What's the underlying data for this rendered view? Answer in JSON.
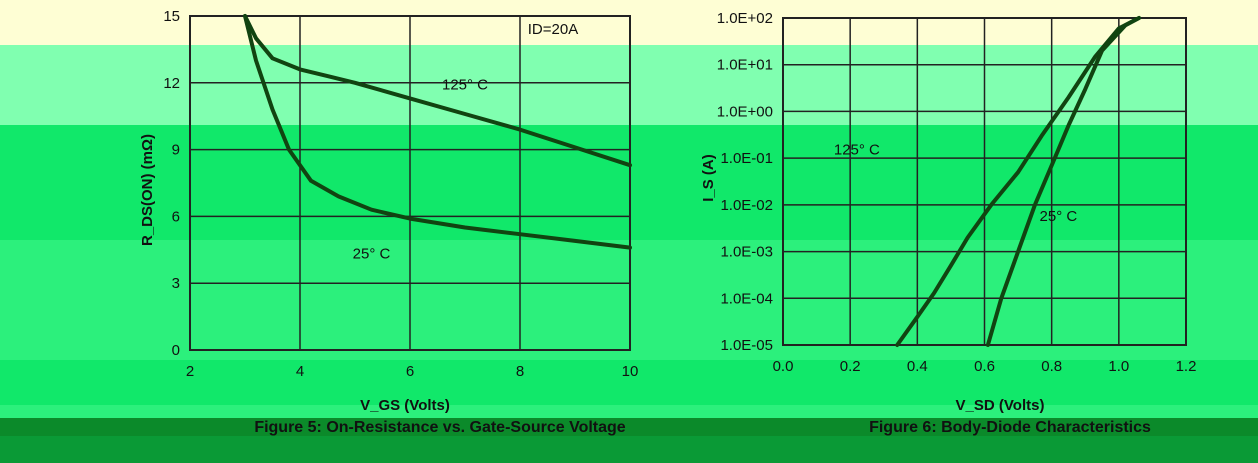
{
  "colors": {
    "band_cream": "#fefed4",
    "band_mint": "#80ffb0",
    "band_green": "#11e86a",
    "band_green2": "#2cf07c",
    "band_dark": "#0b8a2a",
    "band_footer": "#0a9a36",
    "grid": "#222222",
    "curve": "#114411"
  },
  "left": {
    "caption": "Figure 5: On-Resistance vs. Gate-Source Voltage",
    "xlabel": "V_GS (Volts)",
    "ylabel": "R_DS(ON) (mΩ)"
  },
  "right": {
    "caption": "Figure 6: Body-Diode Characteristics",
    "xlabel": "V_SD (Volts)",
    "ylabel": "I_S (A)"
  },
  "chart_data": [
    {
      "type": "line",
      "title": "Figure 5: On-Resistance vs. Gate-Source Voltage",
      "xlabel": "VGS (Volts)",
      "ylabel": "RDS(ON) (mΩ)",
      "xlim": [
        2,
        10
      ],
      "ylim": [
        0,
        15
      ],
      "xticks": [
        "2",
        "4",
        "6",
        "8",
        "10"
      ],
      "yticks": [
        "0",
        "3",
        "6",
        "9",
        "12",
        "15"
      ],
      "annotations": [
        "ID=20A",
        "125° C",
        "25° C"
      ],
      "series": [
        {
          "name": "125° C",
          "x": [
            3.0,
            3.2,
            3.5,
            4.0,
            4.5,
            5.0,
            6.0,
            7.0,
            8.0,
            9.0,
            10.0
          ],
          "y": [
            15.0,
            14.0,
            13.1,
            12.6,
            12.3,
            12.0,
            11.3,
            10.6,
            9.9,
            9.1,
            8.3
          ]
        },
        {
          "name": "25° C",
          "x": [
            3.0,
            3.2,
            3.5,
            3.8,
            4.2,
            4.7,
            5.3,
            6.0,
            7.0,
            8.0,
            9.0,
            10.0
          ],
          "y": [
            15.0,
            13.0,
            10.8,
            9.0,
            7.6,
            6.9,
            6.3,
            5.9,
            5.5,
            5.2,
            4.9,
            4.6
          ]
        }
      ],
      "grid": true
    },
    {
      "type": "line",
      "title": "Figure 6: Body-Diode Characteristics",
      "xlabel": "VSD (Volts)",
      "ylabel": "IS (A)",
      "xlim": [
        0.0,
        1.2
      ],
      "ylim": [
        1e-05,
        100
      ],
      "yscale": "log",
      "xticks": [
        "0.0",
        "0.2",
        "0.4",
        "0.6",
        "0.8",
        "1.0",
        "1.2"
      ],
      "yticks": [
        "1.0E-05",
        "1.0E-04",
        "1.0E-03",
        "1.0E-02",
        "1.0E-01",
        "1.0E+00",
        "1.0E+01",
        "1.0E+02"
      ],
      "annotations": [
        "125° C",
        "25° C"
      ],
      "series": [
        {
          "name": "125° C",
          "x": [
            0.34,
            0.4,
            0.45,
            0.5,
            0.55,
            0.62,
            0.7,
            0.77,
            0.85,
            0.93,
            1.0,
            1.06
          ],
          "y": [
            1e-05,
            4e-05,
            0.00013,
            0.0005,
            0.002,
            0.01,
            0.05,
            0.3,
            2,
            15,
            60,
            100
          ]
        },
        {
          "name": "25° C",
          "x": [
            0.61,
            0.65,
            0.7,
            0.75,
            0.8,
            0.85,
            0.9,
            0.95,
            1.02,
            1.06
          ],
          "y": [
            1e-05,
            0.0001,
            0.001,
            0.01,
            0.07,
            0.5,
            3,
            20,
            70,
            100
          ]
        }
      ],
      "grid": true
    }
  ]
}
